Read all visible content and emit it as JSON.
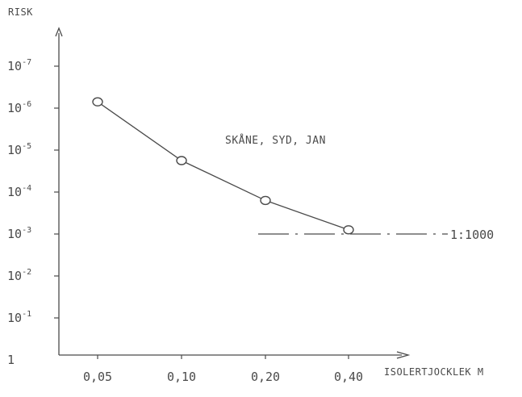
{
  "chart_data": {
    "type": "line",
    "ylabel": "RISK",
    "xlabel": "ISOLERTJOCKLEK M",
    "categories": [
      "0,05",
      "0,10",
      "0,20",
      "0,40"
    ],
    "y_tick_labels": [
      {
        "base": "10",
        "exp": "-7"
      },
      {
        "base": "10",
        "exp": "-6"
      },
      {
        "base": "10",
        "exp": "-5"
      },
      {
        "base": "10",
        "exp": "-4"
      },
      {
        "base": "10",
        "exp": "-3"
      },
      {
        "base": "10",
        "exp": "-2"
      },
      {
        "base": "10",
        "exp": "-1"
      },
      {
        "base": "1",
        "exp": ""
      }
    ],
    "y_scale": "log",
    "y_range_exponent": [
      -7,
      0
    ],
    "y_axis_inverted": true,
    "series": [
      {
        "name": "SKÅNE, SYD, JAN",
        "exponents": [
          -6.15,
          -4.75,
          -3.8,
          -3.1
        ],
        "values": [
          7.1e-07,
          1.8e-05,
          0.00016,
          0.00079
        ]
      }
    ],
    "reference_line": {
      "label": "1:1000",
      "value_exponent": -3,
      "value": 0.001
    },
    "annotations": [
      "SKÅNE, SYD, JAN"
    ],
    "colors": {
      "ink": "#4a4a4a",
      "background": "#ffffff"
    }
  }
}
